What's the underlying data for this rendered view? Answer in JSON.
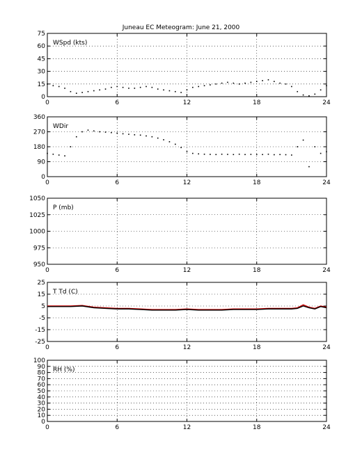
{
  "figure": {
    "title": "Juneau EC Meteogram:      June 21, 2000"
  },
  "chart_data": [
    {
      "type": "scatter",
      "panel_label": "WSpd (kts)",
      "xlim": [
        0,
        24
      ],
      "ylim": [
        0,
        75
      ],
      "xticks": [
        0,
        6,
        12,
        18,
        24
      ],
      "yticks": [
        0,
        15,
        30,
        45,
        60,
        75
      ],
      "grid": "dotted",
      "series": [
        {
          "color": "#000000",
          "x": [
            0,
            0.5,
            1,
            1.5,
            2,
            2.5,
            3,
            3.5,
            4,
            4.5,
            5,
            5.5,
            6,
            6.5,
            7,
            7.5,
            8,
            8.5,
            9,
            9.5,
            10,
            10.5,
            11,
            11.5,
            12,
            12.5,
            13,
            13.5,
            14,
            14.5,
            15,
            15.5,
            16,
            16.5,
            17,
            17.5,
            18,
            18.5,
            19,
            19.5,
            20,
            20.5,
            21,
            21.5,
            22,
            22.5,
            23,
            23.5,
            24
          ],
          "y": [
            15,
            13,
            12,
            10,
            6,
            4,
            5,
            6,
            7,
            8,
            9,
            11,
            12,
            11,
            10,
            10,
            11,
            12,
            11,
            9,
            8,
            7,
            6,
            5,
            8,
            11,
            12,
            13,
            14,
            15,
            16,
            17,
            16,
            15,
            16,
            17,
            18,
            19,
            20,
            18,
            16,
            15,
            12,
            6,
            2,
            1,
            3,
            8,
            13
          ]
        }
      ]
    },
    {
      "type": "scatter",
      "panel_label": "WDir",
      "xlim": [
        0,
        24
      ],
      "ylim": [
        0,
        360
      ],
      "xticks": [
        0,
        6,
        12,
        18,
        24
      ],
      "yticks": [
        0,
        90,
        180,
        270,
        360
      ],
      "grid": "dotted",
      "series": [
        {
          "color": "#000000",
          "x": [
            0,
            0.5,
            1,
            1.5,
            2,
            2.5,
            3,
            3.5,
            4,
            4.5,
            5,
            5.5,
            6,
            6.5,
            7,
            7.5,
            8,
            8.5,
            9,
            9.5,
            10,
            10.5,
            11,
            11.5,
            12,
            12.5,
            13,
            13.5,
            14,
            14.5,
            15,
            15.5,
            16,
            16.5,
            17,
            17.5,
            18,
            18.5,
            19,
            19.5,
            20,
            20.5,
            21,
            21.5,
            22,
            22.5,
            23,
            23.5,
            24
          ],
          "y": [
            140,
            135,
            130,
            125,
            180,
            240,
            270,
            280,
            275,
            270,
            268,
            265,
            262,
            258,
            255,
            252,
            250,
            245,
            240,
            232,
            222,
            210,
            195,
            175,
            150,
            140,
            137,
            135,
            134,
            133,
            135,
            134,
            133,
            135,
            133,
            134,
            133,
            133,
            135,
            132,
            133,
            132,
            130,
            180,
            220,
            60,
            180,
            140,
            150
          ]
        }
      ]
    },
    {
      "type": "line",
      "panel_label": "P (mb)",
      "xlim": [
        0,
        24
      ],
      "ylim": [
        950,
        1050
      ],
      "xticks": [
        0,
        6,
        12,
        18,
        24
      ],
      "yticks": [
        950,
        975,
        1000,
        1025,
        1050
      ],
      "grid": "dotted",
      "series": []
    },
    {
      "type": "line",
      "panel_label": "T Td (C)",
      "xlim": [
        0,
        24
      ],
      "ylim": [
        -25,
        25
      ],
      "xticks": [
        0,
        6,
        12,
        18,
        24
      ],
      "yticks": [
        -25,
        -15,
        -5,
        5,
        15,
        25
      ],
      "grid": "dotted",
      "series": [
        {
          "color": "#cc0000",
          "x": [
            0,
            1,
            2,
            3,
            4,
            5,
            6,
            7,
            8,
            9,
            10,
            11,
            12,
            13,
            14,
            15,
            16,
            17,
            18,
            19,
            20,
            21,
            21.5,
            22,
            22.5,
            23,
            23.5,
            24
          ],
          "y": [
            5,
            5,
            5,
            5.5,
            4,
            3.5,
            3,
            3,
            2.5,
            2,
            2,
            2,
            2.5,
            2,
            2,
            2,
            2.5,
            2.5,
            2.5,
            3,
            3,
            3,
            3.5,
            6,
            4,
            3,
            5,
            4
          ]
        },
        {
          "color": "#000000",
          "x": [
            0,
            1,
            2,
            3,
            4,
            5,
            6,
            7,
            8,
            9,
            10,
            11,
            12,
            13,
            14,
            15,
            16,
            17,
            18,
            19,
            20,
            21,
            21.5,
            22,
            22.5,
            23,
            23.5,
            24
          ],
          "y": [
            4.5,
            4.5,
            4.5,
            5,
            3.5,
            3,
            2.5,
            2.5,
            2,
            1.5,
            1.5,
            1.5,
            2,
            1.5,
            1.5,
            1.5,
            2,
            2,
            2,
            2.5,
            2.5,
            2.5,
            3,
            5,
            3.5,
            2.5,
            4.5,
            3.5
          ]
        }
      ]
    },
    {
      "type": "line",
      "panel_label": "RH (%)",
      "xlim": [
        0,
        24
      ],
      "ylim": [
        0,
        100
      ],
      "xticks": [
        0,
        6,
        12,
        18,
        24
      ],
      "yticks": [
        0,
        10,
        20,
        30,
        40,
        50,
        60,
        70,
        80,
        90,
        100
      ],
      "grid": "dotted",
      "series": []
    }
  ]
}
